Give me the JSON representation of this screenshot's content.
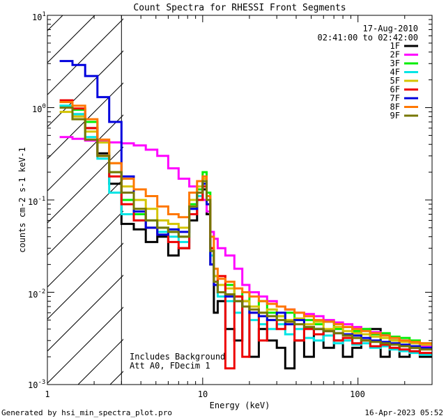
{
  "chart_data": {
    "type": "line",
    "title": "Count Spectra for RHESSI Front Segments",
    "xlabel": "Energy (keV)",
    "ylabel": "counts cm-2 s-1 keV-1",
    "xscale": "log",
    "yscale": "log",
    "xlim": [
      1,
      300
    ],
    "ylim": [
      0.001,
      10
    ],
    "x_ticks": [
      {
        "value": 1,
        "label": "1"
      },
      {
        "value": 10,
        "label": "10"
      },
      {
        "value": 100,
        "label": "100"
      }
    ],
    "y_ticks": [
      {
        "value": 10,
        "label": "10",
        "exp": "1"
      },
      {
        "value": 1,
        "label": "10",
        "exp": "0"
      },
      {
        "value": 0.1,
        "label": "10",
        "exp": "-1"
      },
      {
        "value": 0.01,
        "label": "10",
        "exp": "-2"
      },
      {
        "value": 0.001,
        "label": "10",
        "exp": "-3"
      }
    ],
    "date": "17-Aug-2010",
    "time_range": "02:41:00 to 02:42:00",
    "annotation_lines": [
      "Includes Background",
      "Att A0, FDecim 1"
    ],
    "shaded_region": {
      "x0": 1,
      "x1": 3
    },
    "energy_edges": [
      1.2,
      1.45,
      1.75,
      2.1,
      2.5,
      3.0,
      3.6,
      4.3,
      5.1,
      6.0,
      7.0,
      8.2,
      9.2,
      10.0,
      10.6,
      11.2,
      11.8,
      12.5,
      14,
      16,
      18,
      20,
      23,
      26,
      30,
      34,
      39,
      45,
      52,
      60,
      70,
      80,
      92,
      105,
      120,
      140,
      160,
      185,
      215,
      250,
      300
    ],
    "series": [
      {
        "name": "1F",
        "color": "#000000",
        "values": [
          1.15,
          0.85,
          0.6,
          0.32,
          0.15,
          0.055,
          0.048,
          0.035,
          0.04,
          0.025,
          0.03,
          0.06,
          0.1,
          0.13,
          0.07,
          0.02,
          0.006,
          0.008,
          0.004,
          0.003,
          0.008,
          0.002,
          0.004,
          0.003,
          0.0025,
          0.0015,
          0.003,
          0.002,
          0.004,
          0.0025,
          0.003,
          0.002,
          0.0025,
          0.003,
          0.004,
          0.002,
          0.003,
          0.002,
          0.0025,
          0.002
        ]
      },
      {
        "name": "2F",
        "color": "#ff00ff",
        "values": [
          0.48,
          0.46,
          0.44,
          0.43,
          0.42,
          0.41,
          0.39,
          0.35,
          0.3,
          0.22,
          0.17,
          0.14,
          0.11,
          0.1,
          0.075,
          0.045,
          0.038,
          0.03,
          0.025,
          0.018,
          0.012,
          0.01,
          0.009,
          0.008,
          0.007,
          0.0065,
          0.006,
          0.0058,
          0.0055,
          0.005,
          0.0047,
          0.0045,
          0.0042,
          0.004,
          0.0037,
          0.0035,
          0.0032,
          0.003,
          0.0028,
          0.0026
        ]
      },
      {
        "name": "3F",
        "color": "#00ee00",
        "values": [
          1.05,
          0.95,
          0.7,
          0.42,
          0.2,
          0.1,
          0.07,
          0.06,
          0.05,
          0.045,
          0.04,
          0.09,
          0.13,
          0.2,
          0.12,
          0.03,
          0.015,
          0.01,
          0.012,
          0.009,
          0.01,
          0.007,
          0.008,
          0.006,
          0.0055,
          0.006,
          0.005,
          0.005,
          0.0045,
          0.0048,
          0.004,
          0.0042,
          0.0038,
          0.004,
          0.0035,
          0.0036,
          0.0033,
          0.0032,
          0.003,
          0.0028
        ]
      },
      {
        "name": "4F",
        "color": "#00e5e5",
        "values": [
          1.05,
          0.85,
          0.48,
          0.28,
          0.12,
          0.07,
          0.06,
          0.05,
          0.045,
          0.04,
          0.035,
          0.08,
          0.11,
          0.16,
          0.1,
          0.025,
          0.012,
          0.009,
          0.008,
          0.006,
          0.007,
          0.005,
          0.0045,
          0.004,
          0.0045,
          0.0035,
          0.004,
          0.0032,
          0.003,
          0.0034,
          0.0028,
          0.003,
          0.0027,
          0.0028,
          0.0025,
          0.0026,
          0.0024,
          0.0023,
          0.0022,
          0.0021
        ]
      },
      {
        "name": "5F",
        "color": "#d4c400",
        "values": [
          0.9,
          0.8,
          0.55,
          0.42,
          0.25,
          0.14,
          0.1,
          0.08,
          0.06,
          0.055,
          0.05,
          0.1,
          0.14,
          0.17,
          0.1,
          0.03,
          0.015,
          0.012,
          0.011,
          0.009,
          0.008,
          0.007,
          0.006,
          0.0065,
          0.0055,
          0.005,
          0.0052,
          0.0045,
          0.0048,
          0.004,
          0.0042,
          0.0038,
          0.0036,
          0.0035,
          0.0033,
          0.0032,
          0.003,
          0.0029,
          0.0028,
          0.0027
        ]
      },
      {
        "name": "6F",
        "color": "#ee0000",
        "values": [
          1.2,
          0.98,
          0.6,
          0.3,
          0.18,
          0.09,
          0.06,
          0.05,
          0.042,
          0.035,
          0.03,
          0.07,
          0.1,
          0.14,
          0.09,
          0.03,
          0.012,
          0.015,
          0.0015,
          0.009,
          0.002,
          0.006,
          0.003,
          0.005,
          0.004,
          0.0045,
          0.003,
          0.004,
          0.0035,
          0.0038,
          0.003,
          0.0032,
          0.0028,
          0.003,
          0.0026,
          0.0027,
          0.0025,
          0.0024,
          0.0023,
          0.0022
        ]
      },
      {
        "name": "7F",
        "color": "#0000dd",
        "values": [
          3.2,
          2.9,
          2.2,
          1.3,
          0.7,
          0.18,
          0.075,
          0.05,
          0.042,
          0.048,
          0.045,
          0.08,
          0.12,
          0.15,
          0.09,
          0.02,
          0.012,
          0.01,
          0.009,
          0.008,
          0.007,
          0.006,
          0.0055,
          0.005,
          0.006,
          0.0045,
          0.005,
          0.0042,
          0.004,
          0.0038,
          0.0036,
          0.0035,
          0.0034,
          0.0032,
          0.003,
          0.0029,
          0.0028,
          0.0027,
          0.0026,
          0.0025
        ]
      },
      {
        "name": "8F",
        "color": "#ff7700",
        "values": [
          1.15,
          1.05,
          0.75,
          0.45,
          0.25,
          0.17,
          0.13,
          0.11,
          0.085,
          0.07,
          0.065,
          0.12,
          0.16,
          0.18,
          0.11,
          0.04,
          0.018,
          0.014,
          0.013,
          0.011,
          0.01,
          0.009,
          0.008,
          0.0075,
          0.007,
          0.0065,
          0.006,
          0.0055,
          0.005,
          0.0048,
          0.0045,
          0.0042,
          0.004,
          0.0038,
          0.0036,
          0.0034,
          0.0032,
          0.003,
          0.0029,
          0.0028
        ]
      },
      {
        "name": "9F",
        "color": "#777700",
        "values": [
          1.0,
          0.75,
          0.45,
          0.3,
          0.2,
          0.12,
          0.08,
          0.06,
          0.05,
          0.045,
          0.04,
          0.085,
          0.12,
          0.16,
          0.1,
          0.028,
          0.013,
          0.01,
          0.0095,
          0.008,
          0.007,
          0.0065,
          0.006,
          0.0055,
          0.005,
          0.0048,
          0.0045,
          0.0042,
          0.004,
          0.0038,
          0.0036,
          0.0034,
          0.0032,
          0.003,
          0.0029,
          0.0028,
          0.0027,
          0.0026,
          0.0025,
          0.0024
        ]
      }
    ]
  },
  "footer": {
    "generated_by": "Generated by hsi_min_spectra_plot.pro",
    "timestamp": "16-Apr-2023 05:52"
  }
}
